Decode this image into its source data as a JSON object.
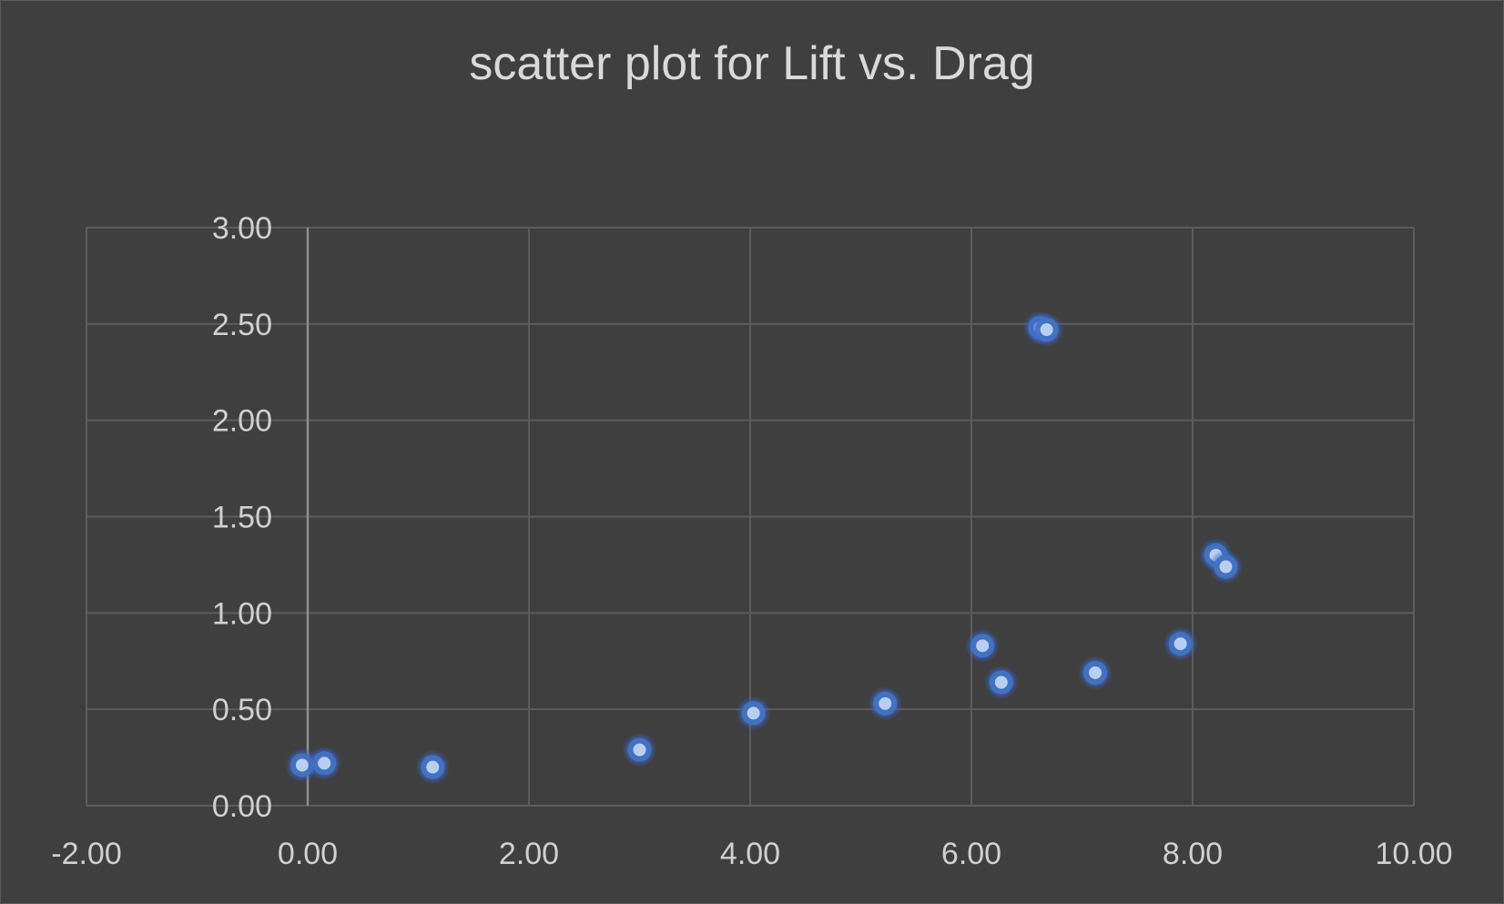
{
  "chart_data": {
    "type": "scatter",
    "title": "scatter plot for Lift vs. Drag",
    "xlabel": "",
    "ylabel": "",
    "xlim": [
      -2,
      10
    ],
    "ylim": [
      0,
      3
    ],
    "x_ticks": [
      "-2.00",
      "0.00",
      "2.00",
      "4.00",
      "6.00",
      "8.00",
      "10.00"
    ],
    "y_ticks": [
      "0.00",
      "0.50",
      "1.00",
      "1.50",
      "2.00",
      "2.50",
      "3.00"
    ],
    "grid": true,
    "legend": "none",
    "marker_color": "#4472c4",
    "points": [
      {
        "x": -0.05,
        "y": 0.21
      },
      {
        "x": 0.15,
        "y": 0.22
      },
      {
        "x": 1.13,
        "y": 0.2
      },
      {
        "x": 3.0,
        "y": 0.29
      },
      {
        "x": 4.03,
        "y": 0.48
      },
      {
        "x": 5.22,
        "y": 0.53
      },
      {
        "x": 6.1,
        "y": 0.83
      },
      {
        "x": 6.27,
        "y": 0.64
      },
      {
        "x": 6.62,
        "y": 2.48
      },
      {
        "x": 6.68,
        "y": 2.47
      },
      {
        "x": 7.12,
        "y": 0.69
      },
      {
        "x": 7.89,
        "y": 0.84
      },
      {
        "x": 8.21,
        "y": 1.3
      },
      {
        "x": 8.3,
        "y": 1.24
      }
    ]
  }
}
